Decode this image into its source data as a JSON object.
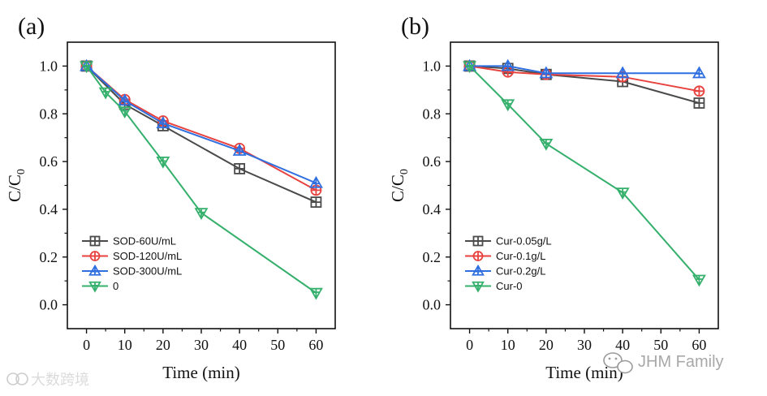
{
  "chart_data": [
    {
      "type": "line",
      "panel_label": "(a)",
      "xlabel": "Time (min)",
      "ylabel": "C/C",
      "ylabel_sub": "0",
      "xlim": [
        -5,
        65
      ],
      "ylim": [
        -0.1,
        1.1
      ],
      "xticks": [
        "0",
        "10",
        "20",
        "30",
        "40",
        "50",
        "60"
      ],
      "yticks": [
        "0.0",
        "0.2",
        "0.4",
        "0.6",
        "0.8",
        "1.0"
      ],
      "legend_position": "bottom-left",
      "series": [
        {
          "name": "SOD-60U/mL",
          "color": "#4a4a4a",
          "marker": "square",
          "x": [
            0,
            10,
            20,
            40,
            60
          ],
          "y": [
            1.0,
            0.84,
            0.75,
            0.57,
            0.43
          ]
        },
        {
          "name": "SOD-120U/mL",
          "color": "#e8423f",
          "marker": "circle",
          "x": [
            0,
            10,
            20,
            40,
            60
          ],
          "y": [
            1.0,
            0.86,
            0.77,
            0.655,
            0.48
          ]
        },
        {
          "name": "SOD-300U/mL",
          "color": "#2f6fe0",
          "marker": "triangle-up",
          "x": [
            0,
            10,
            20,
            40,
            60
          ],
          "y": [
            1.0,
            0.855,
            0.76,
            0.645,
            0.51
          ]
        },
        {
          "name": "0",
          "color": "#35b06c",
          "marker": "triangle-down",
          "x": [
            0,
            5,
            10,
            20,
            30,
            60
          ],
          "y": [
            1.0,
            0.89,
            0.81,
            0.6,
            0.385,
            0.05
          ]
        }
      ]
    },
    {
      "type": "line",
      "panel_label": "(b)",
      "xlabel": "Time (min)",
      "ylabel": "C/C",
      "ylabel_sub": "0",
      "xlim": [
        -5,
        65
      ],
      "ylim": [
        -0.1,
        1.1
      ],
      "xticks": [
        "0",
        "10",
        "20",
        "30",
        "40",
        "50",
        "60"
      ],
      "yticks": [
        "0.0",
        "0.2",
        "0.4",
        "0.6",
        "0.8",
        "1.0"
      ],
      "legend_position": "bottom-left",
      "series": [
        {
          "name": "Cur-0.05g/L",
          "color": "#4a4a4a",
          "marker": "square",
          "x": [
            0,
            10,
            20,
            40,
            60
          ],
          "y": [
            1.0,
            0.99,
            0.965,
            0.935,
            0.845
          ]
        },
        {
          "name": "Cur-0.1g/L",
          "color": "#e8423f",
          "marker": "circle",
          "x": [
            0,
            10,
            20,
            40,
            60
          ],
          "y": [
            1.0,
            0.975,
            0.965,
            0.955,
            0.895
          ]
        },
        {
          "name": "Cur-0.2g/L",
          "color": "#2f6fe0",
          "marker": "triangle-up",
          "x": [
            0,
            10,
            20,
            40,
            60
          ],
          "y": [
            1.0,
            1.0,
            0.97,
            0.97,
            0.97
          ]
        },
        {
          "name": "Cur-0",
          "color": "#35b06c",
          "marker": "triangle-down",
          "x": [
            0,
            10,
            20,
            40,
            60
          ],
          "y": [
            1.0,
            0.84,
            0.675,
            0.47,
            0.105
          ]
        }
      ]
    }
  ],
  "watermarks": {
    "left": "大数跨境",
    "right": "JHM Family"
  }
}
